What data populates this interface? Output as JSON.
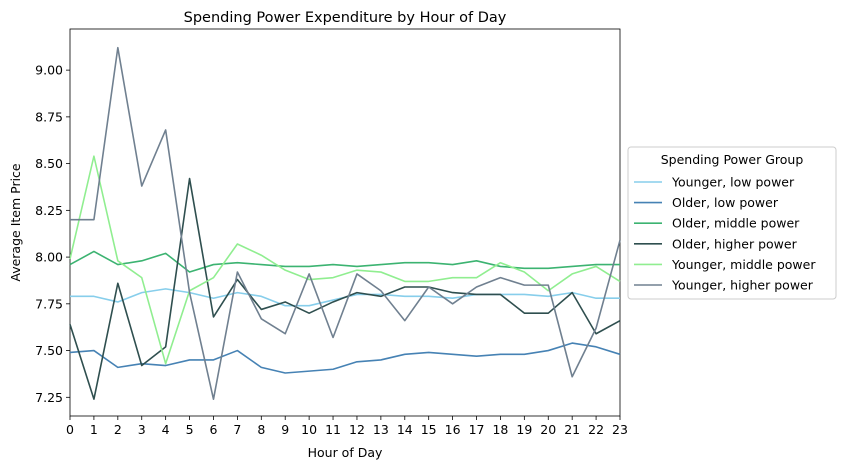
{
  "chart_data": {
    "type": "line",
    "title": "Spending Power Expenditure by Hour of Day",
    "xlabel": "Hour of Day",
    "ylabel": "Average Item Price",
    "x": [
      0,
      1,
      2,
      3,
      4,
      5,
      6,
      7,
      8,
      9,
      10,
      11,
      12,
      13,
      14,
      15,
      16,
      17,
      18,
      19,
      20,
      21,
      22,
      23
    ],
    "x_ticks": [
      "0",
      "1",
      "2",
      "3",
      "4",
      "5",
      "6",
      "7",
      "8",
      "9",
      "10",
      "11",
      "12",
      "13",
      "14",
      "15",
      "16",
      "17",
      "18",
      "19",
      "20",
      "21",
      "22",
      "23"
    ],
    "xlim": [
      0,
      23
    ],
    "ylim": [
      7.15,
      9.22
    ],
    "y_ticks": [
      "7.25",
      "7.50",
      "7.75",
      "8.00",
      "8.25",
      "8.50",
      "8.75",
      "9.00"
    ],
    "grid": false,
    "legend": {
      "title": "Spending Power Group",
      "placement": "center-right outside"
    },
    "series": [
      {
        "name": "Younger, low power",
        "color": "#87ceeb",
        "values": [
          7.79,
          7.79,
          7.76,
          7.81,
          7.83,
          7.81,
          7.78,
          7.81,
          7.79,
          7.74,
          7.74,
          7.77,
          7.8,
          7.8,
          7.79,
          7.79,
          7.78,
          7.8,
          7.8,
          7.8,
          7.79,
          7.81,
          7.78,
          7.78
        ]
      },
      {
        "name": "Older, low power",
        "color": "#4682b4",
        "values": [
          7.49,
          7.5,
          7.41,
          7.43,
          7.42,
          7.45,
          7.45,
          7.5,
          7.41,
          7.38,
          7.39,
          7.4,
          7.44,
          7.45,
          7.48,
          7.49,
          7.48,
          7.47,
          7.48,
          7.48,
          7.5,
          7.54,
          7.52,
          7.48
        ]
      },
      {
        "name": "Older, middle power",
        "color": "#3cb371",
        "values": [
          7.96,
          8.03,
          7.96,
          7.98,
          8.02,
          7.92,
          7.96,
          7.97,
          7.96,
          7.95,
          7.95,
          7.96,
          7.95,
          7.96,
          7.97,
          7.97,
          7.96,
          7.98,
          7.95,
          7.94,
          7.94,
          7.95,
          7.96,
          7.96
        ]
      },
      {
        "name": "Older, higher power",
        "color": "#2f4f4f",
        "values": [
          7.64,
          7.24,
          7.86,
          7.42,
          7.52,
          8.42,
          7.68,
          7.88,
          7.72,
          7.76,
          7.7,
          7.76,
          7.81,
          7.79,
          7.84,
          7.84,
          7.81,
          7.8,
          7.8,
          7.7,
          7.7,
          7.81,
          7.59,
          7.66
        ]
      },
      {
        "name": "Younger, middle power",
        "color": "#90ee90",
        "values": [
          7.99,
          8.54,
          7.98,
          7.89,
          7.43,
          7.82,
          7.89,
          8.07,
          8.01,
          7.93,
          7.88,
          7.89,
          7.93,
          7.92,
          7.87,
          7.87,
          7.89,
          7.89,
          7.97,
          7.92,
          7.82,
          7.91,
          7.95,
          7.87
        ]
      },
      {
        "name": "Younger, higher power",
        "color": "#708090",
        "values": [
          8.2,
          8.2,
          9.12,
          8.38,
          8.68,
          7.81,
          7.24,
          7.92,
          7.67,
          7.59,
          7.91,
          7.57,
          7.91,
          7.82,
          7.66,
          7.84,
          7.75,
          7.84,
          7.89,
          7.85,
          7.85,
          7.36,
          7.62,
          8.09
        ]
      }
    ]
  }
}
